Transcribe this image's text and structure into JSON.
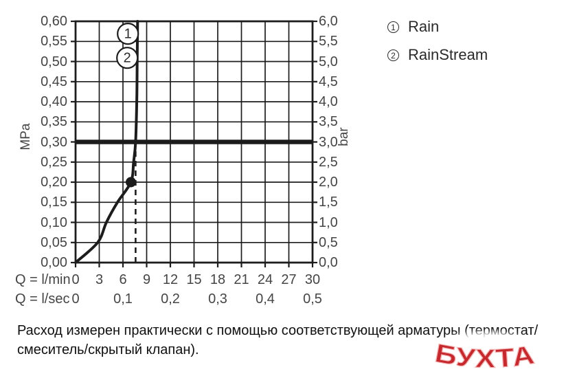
{
  "page": {
    "background": "#ffffff"
  },
  "chart_data": {
    "type": "line",
    "title": "",
    "xlabel_row1": "Q = l/min",
    "xlabel_row2": "Q = l/sec",
    "x_range_lmin": [
      0,
      30
    ],
    "y_range_mpa": [
      0,
      0.6
    ],
    "y_range_bar": [
      0,
      6
    ],
    "grid": true,
    "x_ticks_lmin": [
      "0",
      "3",
      "6",
      "9",
      "12",
      "15",
      "18",
      "21",
      "24",
      "27",
      "30"
    ],
    "x_ticks_lsec": [
      {
        "q": 0,
        "label": "0"
      },
      {
        "q": 6,
        "label": "0,1"
      },
      {
        "q": 12,
        "label": "0,2"
      },
      {
        "q": 18,
        "label": "0,3"
      },
      {
        "q": 24,
        "label": "0,4"
      },
      {
        "q": 30,
        "label": "0,5"
      }
    ],
    "y_left": {
      "label": "MPa",
      "ticks": [
        "0,60",
        "0,55",
        "0,50",
        "0,45",
        "0,40",
        "0,35",
        "0,30",
        "0,25",
        "0,20",
        "0,15",
        "0,10",
        "0,05",
        "0,00"
      ]
    },
    "y_right": {
      "label": "bar",
      "ticks": [
        "6,0",
        "5,5",
        "5,0",
        "4,5",
        "4,0",
        "3,5",
        "3,0",
        "2,5",
        "2,0",
        "1,5",
        "1,0",
        "0,5",
        "0,0"
      ]
    },
    "series": [
      {
        "name": "Rain / RainStream flow curve",
        "points_q_mpa": [
          [
            0,
            0
          ],
          [
            2.8,
            0.05
          ],
          [
            3.9,
            0.1
          ],
          [
            5.3,
            0.15
          ],
          [
            7.0,
            0.2
          ],
          [
            7.35,
            0.25
          ],
          [
            7.6,
            0.3
          ],
          [
            7.75,
            0.4
          ],
          [
            7.8,
            0.5
          ],
          [
            7.85,
            0.6
          ]
        ]
      }
    ],
    "reference_line": {
      "mpa": 0.3,
      "bar": 3.0
    },
    "dashed_marker_q": 7.6,
    "point_marker": {
      "q": 7.0,
      "mpa": 0.2
    },
    "curve_labels": [
      {
        "label": "1",
        "q": 6.63,
        "mpa": 0.569
      },
      {
        "label": "2",
        "q": 6.54,
        "mpa": 0.509
      }
    ],
    "line_color": "#1c1c1c"
  },
  "legend": {
    "items": [
      {
        "num": "1",
        "label": "Rain"
      },
      {
        "num": "2",
        "label": "RainStream"
      }
    ]
  },
  "caption": {
    "line1": "Расход измерен практически с помощью соответствующей арматуры (термостат/",
    "line2": "смеситель/скрытый клапан)."
  },
  "watermark": {
    "text": "БУХТА",
    "color": "#c5282d",
    "outline": "#f3b2b2"
  }
}
